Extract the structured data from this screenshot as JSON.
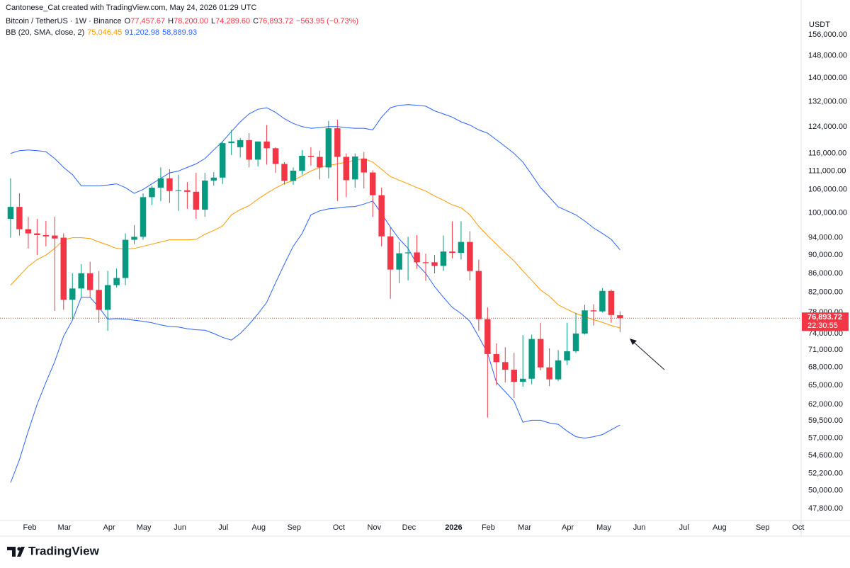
{
  "header": {
    "credit": "Cantonese_Cat created with TradingView.com, May 24, 2026 01:29 UTC",
    "ohlc": [
      {
        "key": "O",
        "value": "77,457.67"
      },
      {
        "key": "H",
        "value": "78,200.00"
      },
      {
        "key": "L",
        "value": "74,289.60"
      },
      {
        "key": "C",
        "value": "76,893.72"
      }
    ],
    "change": "−563.95 (−0.73%)"
  },
  "footer": {
    "logo_text": "TradingView"
  },
  "chart_data": {
    "type": "candlestick",
    "title": "Bitcoin / TetherUS · 1W · Binance",
    "currency": "USDT",
    "up_color": "#089981",
    "down_color": "#f23645",
    "yscale": "log",
    "open": [
      98500,
      101500,
      96000,
      95000,
      94600,
      94500,
      94000,
      80500,
      82800,
      86000,
      82500,
      78500,
      83500,
      85000,
      93500,
      94200,
      104000,
      106500,
      109000,
      105600,
      105800,
      105400,
      100800,
      108400,
      109200,
      119000,
      117800,
      119900,
      114200,
      119500,
      117500,
      113000,
      108300,
      111100,
      115300,
      115000,
      112000,
      123500,
      115000,
      108700,
      114500,
      110600,
      104500,
      94300,
      86800,
      90400,
      90600,
      88400,
      88400,
      87600,
      90800,
      90500,
      93000,
      86500,
      76700,
      70300,
      68900,
      67600,
      65600,
      66100,
      73000,
      68000,
      66000,
      69200,
      70800,
      74000,
      78400,
      78200,
      82300,
      77457.67
    ],
    "high": [
      109000,
      105000,
      99000,
      98500,
      98000,
      99000,
      95000,
      86000,
      88000,
      88500,
      86500,
      86500,
      87000,
      95000,
      97000,
      105000,
      107000,
      112000,
      111500,
      110000,
      108000,
      110500,
      110500,
      110700,
      119500,
      123000,
      120500,
      122000,
      119500,
      124500,
      117800,
      113500,
      112000,
      117000,
      117800,
      116800,
      125800,
      126200,
      116000,
      116000,
      116400,
      111200,
      106500,
      96500,
      93000,
      94200,
      94600,
      90300,
      90000,
      94500,
      97900,
      97900,
      95500,
      89000,
      79000,
      72200,
      71500,
      70500,
      73700,
      73800,
      76000,
      71300,
      71000,
      76000,
      77900,
      79500,
      79600,
      82900,
      82600,
      78200
    ],
    "low": [
      94000,
      94500,
      91500,
      90000,
      92000,
      78300,
      78500,
      76700,
      81000,
      81000,
      76000,
      74500,
      83000,
      83500,
      92500,
      93500,
      102000,
      103000,
      102500,
      100500,
      101000,
      98500,
      99000,
      107000,
      107500,
      115500,
      114800,
      112000,
      112300,
      112800,
      110500,
      107300,
      107300,
      110000,
      112500,
      108700,
      109000,
      103000,
      104000,
      106500,
      106300,
      99000,
      92000,
      80700,
      83900,
      84500,
      87000,
      84400,
      86000,
      86500,
      89300,
      89000,
      84500,
      74500,
      60000,
      65000,
      65500,
      63000,
      64800,
      65200,
      67500,
      64900,
      65700,
      68400,
      70500,
      73800,
      75500,
      78000,
      76000,
      74289.6
    ],
    "close": [
      101500,
      96000,
      95000,
      94600,
      94300,
      93800,
      80500,
      82800,
      86000,
      82500,
      78500,
      83500,
      85000,
      93500,
      94200,
      104000,
      106500,
      109000,
      105600,
      105800,
      105400,
      100800,
      108400,
      109200,
      119000,
      119500,
      119900,
      114200,
      119500,
      117500,
      113000,
      108300,
      111100,
      115300,
      115000,
      112000,
      123500,
      115000,
      108500,
      115100,
      110600,
      104500,
      94300,
      86800,
      90400,
      90600,
      88400,
      88200,
      87600,
      90800,
      90500,
      93000,
      86500,
      76700,
      70300,
      68900,
      67600,
      65600,
      66100,
      73000,
      68000,
      66000,
      69200,
      70800,
      74000,
      78400,
      78200,
      82300,
      77500,
      76893.72
    ],
    "last_price_label": "76,893.72",
    "countdown": "22:30:55",
    "indicator": {
      "label": "BB (20, SMA, close, 2)",
      "lines": [
        {
          "color": "#ff9800",
          "value_label": "75,046.45",
          "values": [
            83500,
            85500,
            87500,
            89000,
            90000,
            91500,
            93500,
            94000,
            94000,
            93800,
            93000,
            92300,
            91500,
            91300,
            91500,
            92000,
            92500,
            93000,
            93500,
            93500,
            93500,
            93600,
            94800,
            95700,
            96800,
            99500,
            100800,
            101800,
            103500,
            105000,
            106400,
            107600,
            108400,
            109700,
            111000,
            112000,
            112500,
            113000,
            113500,
            114000,
            114500,
            113500,
            111500,
            109500,
            108500,
            107500,
            106500,
            105600,
            104300,
            103200,
            102000,
            101300,
            99500,
            96700,
            94500,
            92500,
            90500,
            88700,
            86500,
            84500,
            82500,
            81200,
            79500,
            78600,
            77800,
            77200,
            76600,
            76100,
            75500,
            75046.45
          ]
        },
        {
          "color": "#2962ff",
          "value_label": "91,202.98",
          "values": [
            116000,
            116800,
            117000,
            116800,
            116500,
            114500,
            112000,
            110000,
            107000,
            107000,
            107000,
            107200,
            107500,
            106500,
            105000,
            106000,
            107500,
            109000,
            110500,
            111000,
            112000,
            113000,
            114500,
            117000,
            119500,
            122500,
            125500,
            128000,
            129500,
            130000,
            128500,
            126500,
            125000,
            124000,
            123500,
            123700,
            124000,
            124000,
            123700,
            123500,
            123500,
            123000,
            127000,
            130000,
            130800,
            131000,
            130800,
            130500,
            129000,
            128000,
            127000,
            125500,
            124500,
            123000,
            122000,
            120000,
            118000,
            116000,
            113500,
            110000,
            106500,
            104000,
            101500,
            100500,
            99500,
            98000,
            96300,
            95000,
            93600,
            91202.98
          ]
        },
        {
          "color": "#2962ff",
          "value_label": "58,889.93",
          "values": [
            51000,
            54000,
            58000,
            62000,
            65500,
            69000,
            73500,
            76500,
            81000,
            81000,
            79000,
            76700,
            76800,
            76700,
            76500,
            76300,
            76000,
            75600,
            75300,
            75200,
            74900,
            74700,
            74600,
            74000,
            73300,
            72800,
            74000,
            75700,
            77700,
            80000,
            84000,
            88000,
            92000,
            95000,
            99500,
            100500,
            101000,
            101200,
            101500,
            101600,
            102200,
            103000,
            99800,
            96500,
            93700,
            91500,
            88000,
            86000,
            83200,
            81000,
            79000,
            77800,
            76300,
            73400,
            70500,
            65500,
            64000,
            62500,
            59300,
            59600,
            59600,
            59200,
            59000,
            58000,
            57200,
            57000,
            57200,
            57500,
            58200,
            58889.93
          ]
        }
      ]
    },
    "xlim": [
      -1.2,
      89.5
    ],
    "xticks": [
      {
        "value": 2.17,
        "label": "Feb"
      },
      {
        "value": 6.1,
        "label": "Mar"
      },
      {
        "value": 11.16,
        "label": "Apr"
      },
      {
        "value": 15.09,
        "label": "May"
      },
      {
        "value": 19.18,
        "label": "Jun"
      },
      {
        "value": 24.08,
        "label": "Jul"
      },
      {
        "value": 28.09,
        "label": "Aug"
      },
      {
        "value": 32.1,
        "label": "Sep"
      },
      {
        "value": 37.16,
        "label": "Oct"
      },
      {
        "value": 41.17,
        "label": "Nov"
      },
      {
        "value": 45.1,
        "label": "Dec"
      },
      {
        "value": 50.16,
        "label": "2026"
      },
      {
        "value": 54.09,
        "label": "Feb"
      },
      {
        "value": 58.19,
        "label": "Mar"
      },
      {
        "value": 63.08,
        "label": "Apr"
      },
      {
        "value": 67.17,
        "label": "May"
      },
      {
        "value": 71.19,
        "label": "Jun"
      },
      {
        "value": 76.24,
        "label": "Jul"
      },
      {
        "value": 80.26,
        "label": "Aug"
      },
      {
        "value": 85.15,
        "label": "Sep"
      },
      {
        "value": 89.17,
        "label": "Oct"
      }
    ],
    "ylim": [
      46400,
      170100
    ],
    "yticks": [
      {
        "value": 156000,
        "label": "156,000.00"
      },
      {
        "value": 148000,
        "label": "148,000.00"
      },
      {
        "value": 140000,
        "label": "140,000.00"
      },
      {
        "value": 132000,
        "label": "132,000.00"
      },
      {
        "value": 124000,
        "label": "124,000.00"
      },
      {
        "value": 116000,
        "label": "116,000.00"
      },
      {
        "value": 111000,
        "label": "111,000.00"
      },
      {
        "value": 106000,
        "label": "106,000.00"
      },
      {
        "value": 100000,
        "label": "100,000.00"
      },
      {
        "value": 94000,
        "label": "94,000.00"
      },
      {
        "value": 90000,
        "label": "90,000.00"
      },
      {
        "value": 86000,
        "label": "86,000.00"
      },
      {
        "value": 82000,
        "label": "82,000.00"
      },
      {
        "value": 78000,
        "label": "78,000.00"
      },
      {
        "value": 74000,
        "label": "74,000.00"
      },
      {
        "value": 71000,
        "label": "71,000.00"
      },
      {
        "value": 68000,
        "label": "68,000.00"
      },
      {
        "value": 65000,
        "label": "65,000.00"
      },
      {
        "value": 62000,
        "label": "62,000.00"
      },
      {
        "value": 59500,
        "label": "59,500.00"
      },
      {
        "value": 57000,
        "label": "57,000.00"
      },
      {
        "value": 54600,
        "label": "54,600.00"
      },
      {
        "value": 52200,
        "label": "52,200.00"
      },
      {
        "value": 50000,
        "label": "50,000.00"
      },
      {
        "value": 47800,
        "label": "47,800.00"
      }
    ]
  }
}
